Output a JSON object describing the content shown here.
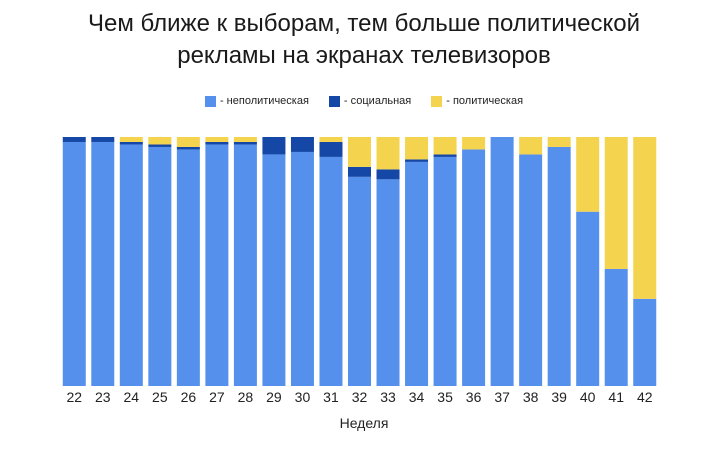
{
  "title_line1": "Чем ближе к выборам, тем больше политической",
  "title_line2": "рекламы на экранах телевизоров",
  "colors": {
    "nonpolitical": "#5591EC",
    "social": "#1547A6",
    "political": "#F4D34F"
  },
  "legend": {
    "nonpolitical": "- неполитическая",
    "social": "- социальная",
    "political": "- политическая"
  },
  "chart_data": {
    "type": "bar",
    "stacked": true,
    "xlabel": "Неделя",
    "ylabel": "",
    "ylim": [
      0,
      100
    ],
    "categories": [
      "22",
      "23",
      "24",
      "25",
      "26",
      "27",
      "28",
      "29",
      "30",
      "31",
      "32",
      "33",
      "34",
      "35",
      "36",
      "37",
      "38",
      "39",
      "40",
      "41",
      "42"
    ],
    "series": [
      {
        "name": "- неполитическая",
        "key": "nonpolitical",
        "values": [
          98,
          98,
          97,
          96,
          95,
          97,
          97,
          93,
          94,
          92,
          84,
          83,
          90,
          92,
          95,
          100,
          93,
          96,
          70,
          47,
          35
        ]
      },
      {
        "name": "- социальная",
        "key": "social",
        "values": [
          2,
          2,
          1,
          1,
          1,
          1,
          1,
          7,
          6,
          6,
          4,
          4,
          1,
          1,
          0,
          0,
          0,
          0,
          0,
          0,
          0
        ]
      },
      {
        "name": "- политическая",
        "key": "political",
        "values": [
          0,
          0,
          2,
          3,
          4,
          2,
          2,
          0,
          0,
          2,
          12,
          13,
          9,
          7,
          5,
          0,
          7,
          4,
          30,
          53,
          65
        ]
      }
    ]
  }
}
